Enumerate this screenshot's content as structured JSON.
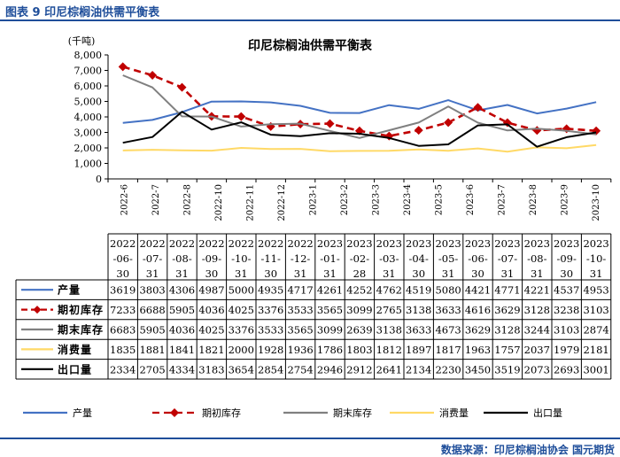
{
  "figure_title": "图表 9  印尼棕榈油供需平衡表",
  "source": "数据来源：印尼棕榈油协会  国元期货",
  "colors": {
    "accent": "#1f4e9a"
  },
  "chart_data": {
    "type": "line",
    "title": "印尼棕榈油供需平衡表",
    "unit_label": "(千吨)",
    "ylim": [
      0,
      8000
    ],
    "yticks": [
      "0",
      "1,000",
      "2,000",
      "3,000",
      "4,000",
      "5,000",
      "6,000",
      "7,000",
      "8,000"
    ],
    "categories": [
      "2022-6",
      "2022-7",
      "2022-8",
      "2022-9",
      "2022-10",
      "2022-11",
      "2022-12",
      "2023-1",
      "2023-2",
      "2023-3",
      "2023-4",
      "2023-5",
      "2023-6",
      "2023-7",
      "2023-8",
      "2023-9",
      "2023-10"
    ],
    "x_tick_labels": [
      "2022-6",
      "2022-7",
      "2022-8",
      "2022-10",
      "2022-11",
      "2022-12",
      "2023-1",
      "2023-2",
      "2023-3",
      "2023-4",
      "2023-5",
      "2023-6",
      "2023-7",
      "2023-8",
      "2023-9",
      "2023-10"
    ],
    "table_headers": [
      [
        "2022",
        "-06-",
        "30"
      ],
      [
        "2022",
        "-07-",
        "31"
      ],
      [
        "2022",
        "-08-",
        "31"
      ],
      [
        "2022",
        "-09-",
        "30"
      ],
      [
        "2022",
        "-10-",
        "31"
      ],
      [
        "2022",
        "-11-",
        "30"
      ],
      [
        "2022",
        "-12-",
        "31"
      ],
      [
        "2023",
        "-01-",
        "31"
      ],
      [
        "2023",
        "-02-",
        "28"
      ],
      [
        "2023",
        "-03-",
        "31"
      ],
      [
        "2023",
        "-04-",
        "30"
      ],
      [
        "2023",
        "-05-",
        "31"
      ],
      [
        "2023",
        "-06-",
        "30"
      ],
      [
        "2023",
        "-07-",
        "31"
      ],
      [
        "2023",
        "-08-",
        "31"
      ],
      [
        "2023",
        "-09-",
        "30"
      ],
      [
        "2023",
        "-10-",
        "31"
      ]
    ],
    "series": [
      {
        "name": "产量",
        "color": "#4472c4",
        "dash": false,
        "marker": false,
        "values": [
          3619,
          3803,
          4306,
          4987,
          5000,
          4935,
          4717,
          4261,
          4252,
          4762,
          4519,
          5080,
          4421,
          4771,
          4221,
          4537,
          4953
        ]
      },
      {
        "name": "期初库存",
        "color": "#c00000",
        "dash": true,
        "marker": true,
        "values": [
          7233,
          6688,
          5905,
          4036,
          4025,
          3376,
          3533,
          3565,
          3099,
          2765,
          3138,
          3633,
          4616,
          3629,
          3128,
          3238,
          3103
        ]
      },
      {
        "name": "期末库存",
        "color": "#808080",
        "dash": false,
        "marker": false,
        "values": [
          6683,
          5905,
          4036,
          4025,
          3376,
          3533,
          3565,
          3099,
          2639,
          3138,
          3633,
          4673,
          3629,
          3128,
          3244,
          3103,
          2874
        ]
      },
      {
        "name": "消费量",
        "color": "#ffd966",
        "dash": false,
        "marker": false,
        "values": [
          1835,
          1881,
          1841,
          1821,
          2000,
          1928,
          1936,
          1786,
          1803,
          1812,
          1897,
          1817,
          1963,
          1757,
          2037,
          1979,
          2181
        ]
      },
      {
        "name": "出口量",
        "color": "#000000",
        "dash": false,
        "marker": false,
        "values": [
          2334,
          2705,
          4334,
          3183,
          3654,
          2854,
          2754,
          2946,
          2912,
          2641,
          2134,
          2230,
          3450,
          3519,
          2073,
          2693,
          3001
        ]
      }
    ]
  }
}
